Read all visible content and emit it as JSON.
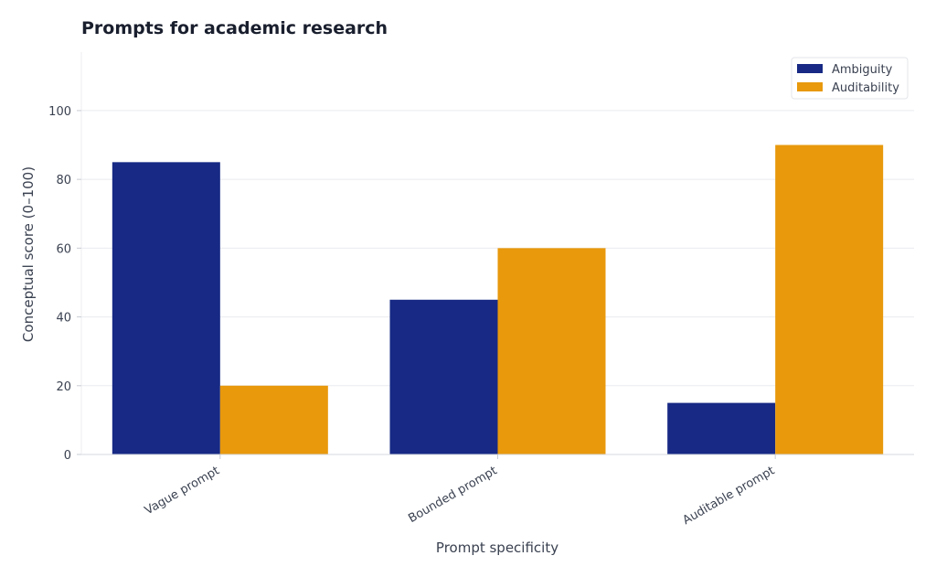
{
  "chart_data": {
    "type": "bar",
    "title": "Prompts for academic research",
    "xlabel": "Prompt specificity",
    "ylabel": "Conceptual score (0–100)",
    "categories": [
      "Vague prompt",
      "Bounded prompt",
      "Auditable prompt"
    ],
    "series": [
      {
        "name": "Ambiguity",
        "values": [
          85,
          45,
          15
        ],
        "color": "#172984"
      },
      {
        "name": "Auditability",
        "values": [
          20,
          60,
          90
        ],
        "color": "#e8990c"
      }
    ],
    "ylim": [
      0,
      117
    ],
    "yticks": [
      0,
      20,
      40,
      60,
      80,
      100
    ],
    "grid": true,
    "legend": "top-right"
  }
}
